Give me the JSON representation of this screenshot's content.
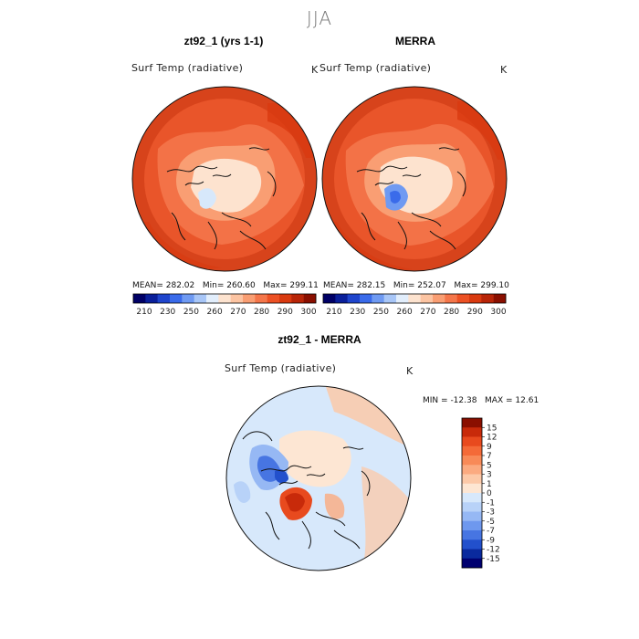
{
  "figure": {
    "season": "JJA"
  },
  "panels": {
    "model": {
      "title": "zt92_1 (yrs 1-1)",
      "variable": "Surf Temp (radiative)",
      "unit": "K",
      "stats": {
        "mean_label": "MEAN=",
        "mean": "282.02",
        "min_label": "Min=",
        "min": "260.60",
        "max_label": "Max=",
        "max": "299.11"
      }
    },
    "obs": {
      "title": "MERRA",
      "variable": "Surf Temp (radiative)",
      "unit": "K",
      "stats": {
        "mean_label": "MEAN=",
        "mean": "282.15",
        "min_label": "Min=",
        "min": "252.07",
        "max_label": "Max=",
        "max": "299.10"
      }
    },
    "diff": {
      "title": "zt92_1 - MERRA",
      "variable": "Surf Temp (radiative)",
      "unit": "K",
      "stats": {
        "min_label": "MIN =",
        "min": "-12.38",
        "max_label": "MAX =",
        "max": "12.61"
      }
    }
  },
  "chart_data": [
    {
      "type": "heatmap",
      "projection": "north-polar-stereographic",
      "title": "zt92_1 (yrs 1-1)",
      "variable": "Surf Temp (radiative)",
      "units": "K",
      "mean": 282.02,
      "min": 260.6,
      "max": 299.11,
      "colorbar": {
        "orientation": "horizontal",
        "tick_labels": [
          "210",
          "230",
          "250",
          "260",
          "270",
          "280",
          "290",
          "300"
        ],
        "colors": [
          "#000066",
          "#0a1f9a",
          "#1f45cc",
          "#3a6bea",
          "#6f9af2",
          "#a8c6f7",
          "#e2eefc",
          "#fde3cf",
          "#fcc4a2",
          "#f99e73",
          "#f4764a",
          "#ec5124",
          "#d93a10",
          "#b82508",
          "#8a0f00"
        ]
      }
    },
    {
      "type": "heatmap",
      "projection": "north-polar-stereographic",
      "title": "MERRA",
      "variable": "Surf Temp (radiative)",
      "units": "K",
      "mean": 282.15,
      "min": 252.07,
      "max": 299.1,
      "colorbar": {
        "orientation": "horizontal",
        "tick_labels": [
          "210",
          "230",
          "250",
          "260",
          "270",
          "280",
          "290",
          "300"
        ],
        "colors": [
          "#000066",
          "#0a1f9a",
          "#1f45cc",
          "#3a6bea",
          "#6f9af2",
          "#a8c6f7",
          "#e2eefc",
          "#fde3cf",
          "#fcc4a2",
          "#f99e73",
          "#f4764a",
          "#ec5124",
          "#d93a10",
          "#b82508",
          "#8a0f00"
        ]
      }
    },
    {
      "type": "heatmap",
      "projection": "north-polar-stereographic",
      "title": "zt92_1 - MERRA",
      "variable": "Surf Temp (radiative)",
      "units": "K",
      "min": -12.38,
      "max": 12.61,
      "colorbar": {
        "orientation": "vertical",
        "tick_labels": [
          "15",
          "12",
          "9",
          "7",
          "5",
          "3",
          "1",
          "0",
          "-1",
          "-3",
          "-5",
          "-7",
          "-9",
          "-12",
          "-15"
        ],
        "colors": [
          "#8a0f00",
          "#c82a0a",
          "#e84a1e",
          "#f46a38",
          "#f88a58",
          "#fbaa80",
          "#fcc9a8",
          "#fde6d3",
          "#d7e8fb",
          "#b8d2f8",
          "#96b8f4",
          "#6e98ee",
          "#4775e2",
          "#2250cc",
          "#0a2a9e",
          "#000070"
        ]
      }
    }
  ]
}
